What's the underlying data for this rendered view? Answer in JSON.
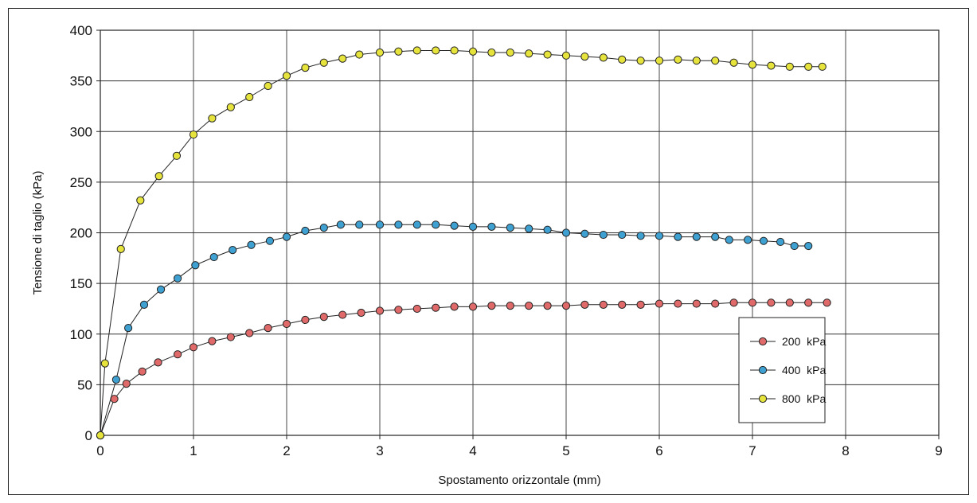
{
  "chart_data": {
    "type": "line",
    "xlabel": "Spostamento orizzontale (mm)",
    "ylabel": "Tensione di taglio (kPa)",
    "xlim": [
      0,
      9
    ],
    "ylim": [
      0,
      400
    ],
    "x_ticks": [
      0,
      1,
      2,
      3,
      4,
      5,
      6,
      7,
      8,
      9
    ],
    "y_ticks": [
      0,
      50,
      100,
      150,
      200,
      250,
      300,
      350,
      400
    ],
    "grid": true,
    "legend_position": "bottom-right",
    "series": [
      {
        "name": "200  kPa",
        "color": "#e06a6a",
        "points": [
          [
            0,
            0
          ],
          [
            0.15,
            36
          ],
          [
            0.28,
            51
          ],
          [
            0.45,
            63
          ],
          [
            0.62,
            72
          ],
          [
            0.83,
            80
          ],
          [
            1.0,
            87
          ],
          [
            1.2,
            93
          ],
          [
            1.4,
            97
          ],
          [
            1.6,
            101
          ],
          [
            1.8,
            106
          ],
          [
            2.0,
            110
          ],
          [
            2.2,
            114
          ],
          [
            2.4,
            117
          ],
          [
            2.6,
            119
          ],
          [
            2.8,
            121
          ],
          [
            3.0,
            123
          ],
          [
            3.2,
            124
          ],
          [
            3.4,
            125
          ],
          [
            3.6,
            126
          ],
          [
            3.8,
            127
          ],
          [
            4.0,
            127
          ],
          [
            4.2,
            128
          ],
          [
            4.4,
            128
          ],
          [
            4.6,
            128
          ],
          [
            4.8,
            128
          ],
          [
            5.0,
            128
          ],
          [
            5.2,
            129
          ],
          [
            5.4,
            129
          ],
          [
            5.6,
            129
          ],
          [
            5.8,
            129
          ],
          [
            6.0,
            130
          ],
          [
            6.2,
            130
          ],
          [
            6.4,
            130
          ],
          [
            6.6,
            130
          ],
          [
            6.8,
            131
          ],
          [
            7.0,
            131
          ],
          [
            7.2,
            131
          ],
          [
            7.4,
            131
          ],
          [
            7.6,
            131
          ],
          [
            7.8,
            131
          ]
        ]
      },
      {
        "name": "400  kPa",
        "color": "#3fa0d2",
        "points": [
          [
            0,
            0
          ],
          [
            0.17,
            55
          ],
          [
            0.3,
            106
          ],
          [
            0.47,
            129
          ],
          [
            0.65,
            144
          ],
          [
            0.83,
            155
          ],
          [
            1.02,
            168
          ],
          [
            1.22,
            176
          ],
          [
            1.42,
            183
          ],
          [
            1.62,
            188
          ],
          [
            1.82,
            192
          ],
          [
            2.0,
            196
          ],
          [
            2.2,
            202
          ],
          [
            2.4,
            205
          ],
          [
            2.58,
            208
          ],
          [
            2.78,
            208
          ],
          [
            3.0,
            208
          ],
          [
            3.2,
            208
          ],
          [
            3.4,
            208
          ],
          [
            3.6,
            208
          ],
          [
            3.8,
            207
          ],
          [
            4.0,
            206
          ],
          [
            4.2,
            206
          ],
          [
            4.4,
            205
          ],
          [
            4.6,
            204
          ],
          [
            4.8,
            203
          ],
          [
            5.0,
            200
          ],
          [
            5.2,
            199
          ],
          [
            5.4,
            198
          ],
          [
            5.6,
            198
          ],
          [
            5.8,
            197
          ],
          [
            6.0,
            197
          ],
          [
            6.2,
            196
          ],
          [
            6.4,
            196
          ],
          [
            6.6,
            196
          ],
          [
            6.75,
            193
          ],
          [
            6.95,
            193
          ],
          [
            7.12,
            192
          ],
          [
            7.3,
            191
          ],
          [
            7.45,
            187
          ],
          [
            7.6,
            187
          ]
        ]
      },
      {
        "name": "800  kPa",
        "color": "#e6e43c",
        "points": [
          [
            0,
            0
          ],
          [
            0.05,
            71
          ],
          [
            0.22,
            184
          ],
          [
            0.43,
            232
          ],
          [
            0.63,
            256
          ],
          [
            0.82,
            276
          ],
          [
            1.0,
            297
          ],
          [
            1.2,
            313
          ],
          [
            1.4,
            324
          ],
          [
            1.6,
            334
          ],
          [
            1.8,
            345
          ],
          [
            2.0,
            355
          ],
          [
            2.2,
            363
          ],
          [
            2.4,
            368
          ],
          [
            2.6,
            372
          ],
          [
            2.78,
            376
          ],
          [
            3.0,
            378
          ],
          [
            3.2,
            379
          ],
          [
            3.4,
            380
          ],
          [
            3.6,
            380
          ],
          [
            3.8,
            380
          ],
          [
            4.0,
            379
          ],
          [
            4.2,
            378
          ],
          [
            4.4,
            378
          ],
          [
            4.6,
            377
          ],
          [
            4.8,
            376
          ],
          [
            5.0,
            375
          ],
          [
            5.2,
            374
          ],
          [
            5.4,
            373
          ],
          [
            5.6,
            371
          ],
          [
            5.8,
            370
          ],
          [
            6.0,
            370
          ],
          [
            6.2,
            371
          ],
          [
            6.4,
            370
          ],
          [
            6.6,
            370
          ],
          [
            6.8,
            368
          ],
          [
            7.0,
            366
          ],
          [
            7.2,
            365
          ],
          [
            7.4,
            364
          ],
          [
            7.6,
            364
          ],
          [
            7.75,
            364
          ]
        ]
      }
    ]
  }
}
